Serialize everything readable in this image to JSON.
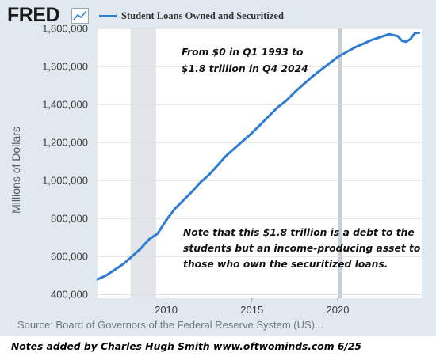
{
  "header": {
    "logo_text": "FRED",
    "logo_icon": "line-chart-icon"
  },
  "colors": {
    "series": "#2d7dd2",
    "panel_background": "#e1e9f0",
    "plot_background": "#ffffff",
    "recession_shade": "#e1e5e9",
    "gridline": "#d9d9d9"
  },
  "chart_data": {
    "type": "line",
    "title": "",
    "ylabel": "Millions of Dollars",
    "xlabel": "",
    "xlim": [
      2006.0,
      2024.9
    ],
    "ylim": [
      380000,
      1800000
    ],
    "y_ticks": [
      400000,
      600000,
      800000,
      1000000,
      1200000,
      1400000,
      1600000,
      1800000
    ],
    "y_tick_labels": [
      "400,000",
      "600,000",
      "800,000",
      "1,000,000",
      "1,200,000",
      "1,400,000",
      "1,600,000",
      "1,800,000"
    ],
    "x_ticks": [
      2010,
      2015,
      2020
    ],
    "x_tick_labels": [
      "2010",
      "2015",
      "2020"
    ],
    "grid": "horizontal",
    "legend_position": "top",
    "recession_periods": [
      [
        2007.92,
        2009.42
      ],
      [
        2020.0,
        2020.25
      ]
    ],
    "series": [
      {
        "name": "Student Loans Owned and Securitized",
        "points": [
          [
            2006.0,
            480000
          ],
          [
            2006.5,
            500000
          ],
          [
            2007.0,
            530000
          ],
          [
            2007.5,
            560000
          ],
          [
            2008.0,
            600000
          ],
          [
            2008.5,
            640000
          ],
          [
            2009.0,
            690000
          ],
          [
            2009.5,
            720000
          ],
          [
            2010.0,
            790000
          ],
          [
            2010.5,
            850000
          ],
          [
            2011.0,
            895000
          ],
          [
            2011.5,
            940000
          ],
          [
            2012.0,
            990000
          ],
          [
            2012.5,
            1030000
          ],
          [
            2013.0,
            1080000
          ],
          [
            2013.5,
            1130000
          ],
          [
            2014.0,
            1170000
          ],
          [
            2014.5,
            1210000
          ],
          [
            2015.0,
            1250000
          ],
          [
            2015.5,
            1295000
          ],
          [
            2016.0,
            1340000
          ],
          [
            2016.5,
            1385000
          ],
          [
            2017.0,
            1420000
          ],
          [
            2017.5,
            1465000
          ],
          [
            2018.0,
            1505000
          ],
          [
            2018.5,
            1545000
          ],
          [
            2019.0,
            1580000
          ],
          [
            2019.5,
            1615000
          ],
          [
            2020.0,
            1650000
          ],
          [
            2020.5,
            1675000
          ],
          [
            2021.0,
            1700000
          ],
          [
            2021.5,
            1720000
          ],
          [
            2022.0,
            1740000
          ],
          [
            2022.5,
            1755000
          ],
          [
            2023.0,
            1770000
          ],
          [
            2023.5,
            1760000
          ],
          [
            2023.75,
            1735000
          ],
          [
            2024.0,
            1730000
          ],
          [
            2024.25,
            1745000
          ],
          [
            2024.5,
            1775000
          ],
          [
            2024.75,
            1778000
          ]
        ]
      }
    ],
    "annotations": [
      {
        "name": "annotation-range",
        "lines": [
          "From $0 in Q1 1993 to",
          "$1.8 trillion in Q4 2024"
        ]
      },
      {
        "name": "annotation-note",
        "lines": [
          "Note that this $1.8 trillion is a debt to the",
          "students but an income-producing asset to",
          "those who own the securitized loans."
        ]
      }
    ]
  },
  "source_text": "Source: Board of Governors of the Federal Reserve System (US)...",
  "footer_note": "Notes added by Charles Hugh Smith  www.oftwominds.com  6/25"
}
